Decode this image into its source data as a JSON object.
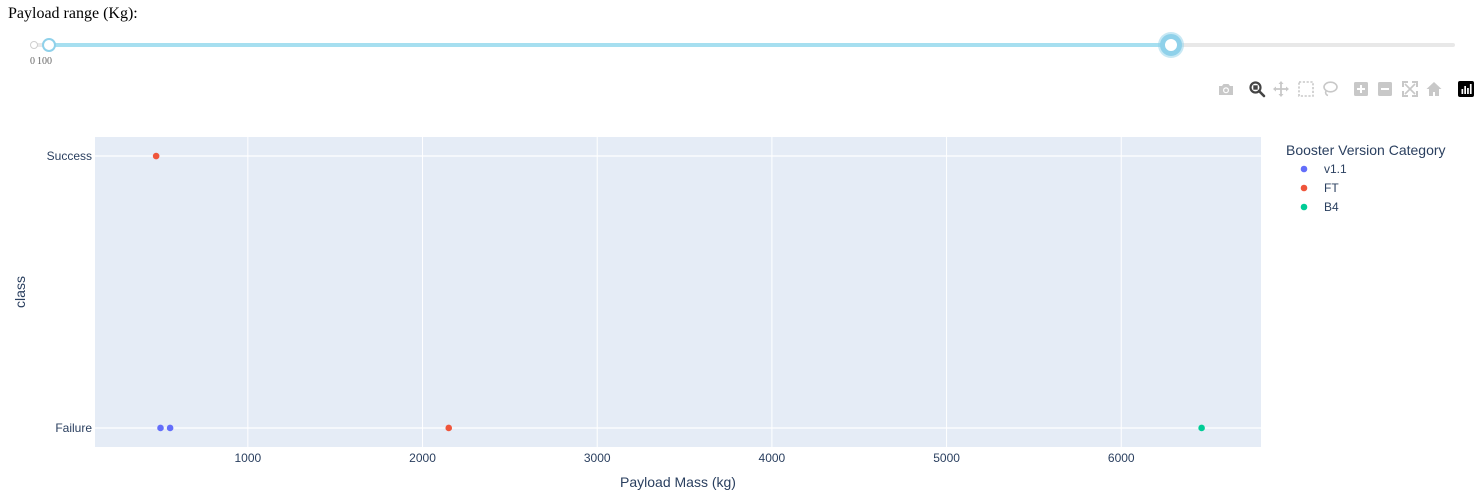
{
  "slider": {
    "label": "Payload range (Kg):",
    "min": 0,
    "max": 10000,
    "value_low": 100,
    "value_high": 8000,
    "marks": [
      "0",
      "100"
    ],
    "track_color": "#e8e8e8",
    "fill_color": "#a6dff0",
    "handle_color": "#8fd1ea"
  },
  "modebar": {
    "buttons": [
      {
        "name": "camera-icon",
        "active": false
      },
      {
        "name": "zoom-icon",
        "active": true
      },
      {
        "name": "pan-icon",
        "active": false
      },
      {
        "name": "box-select-icon",
        "active": false
      },
      {
        "name": "lasso-icon",
        "active": false
      },
      {
        "name": "zoom-in-icon",
        "active": false
      },
      {
        "name": "zoom-out-icon",
        "active": false
      },
      {
        "name": "autoscale-icon",
        "active": false
      },
      {
        "name": "home-icon",
        "active": false
      },
      {
        "name": "plotly-logo-icon",
        "active": false
      }
    ]
  },
  "chart_data": {
    "type": "scatter",
    "title": "",
    "xlabel": "Payload Mass (kg)",
    "ylabel": "class",
    "xlim": [
      125,
      6800
    ],
    "ylim": [
      -0.07,
      1.07
    ],
    "xticks": [
      1000,
      2000,
      3000,
      4000,
      5000,
      6000
    ],
    "yticks": [
      0,
      1
    ],
    "ytick_labels": [
      "Failure",
      "Success"
    ],
    "grid": true,
    "plot_background": "#e5ecf6",
    "legend_title": "Booster Version Category",
    "legend_position": "right",
    "series": [
      {
        "name": "v1.1",
        "color": "#636efa",
        "points": [
          {
            "x": 500,
            "y": 0
          },
          {
            "x": 555,
            "y": 0
          }
        ]
      },
      {
        "name": "FT",
        "color": "#ef553b",
        "points": [
          {
            "x": 475,
            "y": 1
          },
          {
            "x": 2150,
            "y": 0
          }
        ]
      },
      {
        "name": "B4",
        "color": "#00cc96",
        "points": [
          {
            "x": 6460,
            "y": 0
          }
        ]
      }
    ]
  }
}
